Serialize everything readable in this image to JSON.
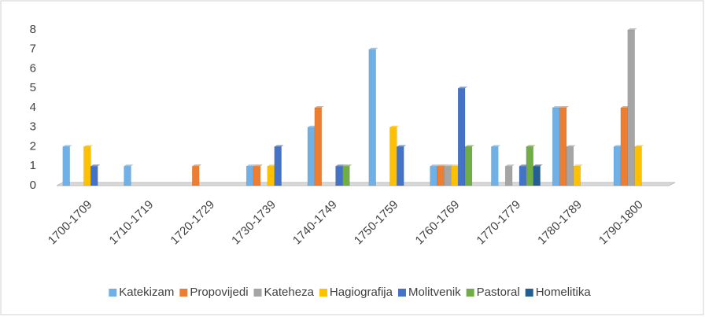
{
  "chart_data": {
    "type": "bar",
    "categories": [
      "1700-1709",
      "1710-1719",
      "1720-1729",
      "1730-1739",
      "1740-1749",
      "1750-1759",
      "1760-1769",
      "1770-1779",
      "1780-1789",
      "1790-1800"
    ],
    "series": [
      {
        "name": "Katekizam",
        "color": "#6fb0e6",
        "values": [
          2,
          1,
          0,
          1,
          3,
          7,
          1,
          2,
          4,
          2
        ]
      },
      {
        "name": "Propovijedi",
        "color": "#ed7d31",
        "values": [
          0,
          0,
          1,
          1,
          4,
          0,
          1,
          0,
          4,
          4
        ]
      },
      {
        "name": "Kateheza",
        "color": "#a5a5a5",
        "values": [
          0,
          0,
          0,
          0,
          0,
          0,
          1,
          1,
          2,
          8
        ]
      },
      {
        "name": "Hagiografija",
        "color": "#ffc000",
        "values": [
          2,
          0,
          0,
          1,
          0,
          3,
          1,
          0,
          1,
          2
        ]
      },
      {
        "name": "Molitvenik",
        "color": "#4472c4",
        "values": [
          1,
          0,
          0,
          2,
          1,
          2,
          5,
          1,
          0,
          0
        ]
      },
      {
        "name": "Pastoral",
        "color": "#70ad47",
        "values": [
          0,
          0,
          0,
          0,
          1,
          0,
          2,
          2,
          0,
          0
        ]
      },
      {
        "name": "Homelitika",
        "color": "#255e91",
        "values": [
          0,
          0,
          0,
          0,
          0,
          0,
          0,
          1,
          0,
          0
        ]
      }
    ],
    "ylim": [
      0,
      8
    ],
    "yticks": [
      0,
      1,
      2,
      3,
      4,
      5,
      6,
      7,
      8
    ],
    "grid": false,
    "legend": "bottom"
  }
}
